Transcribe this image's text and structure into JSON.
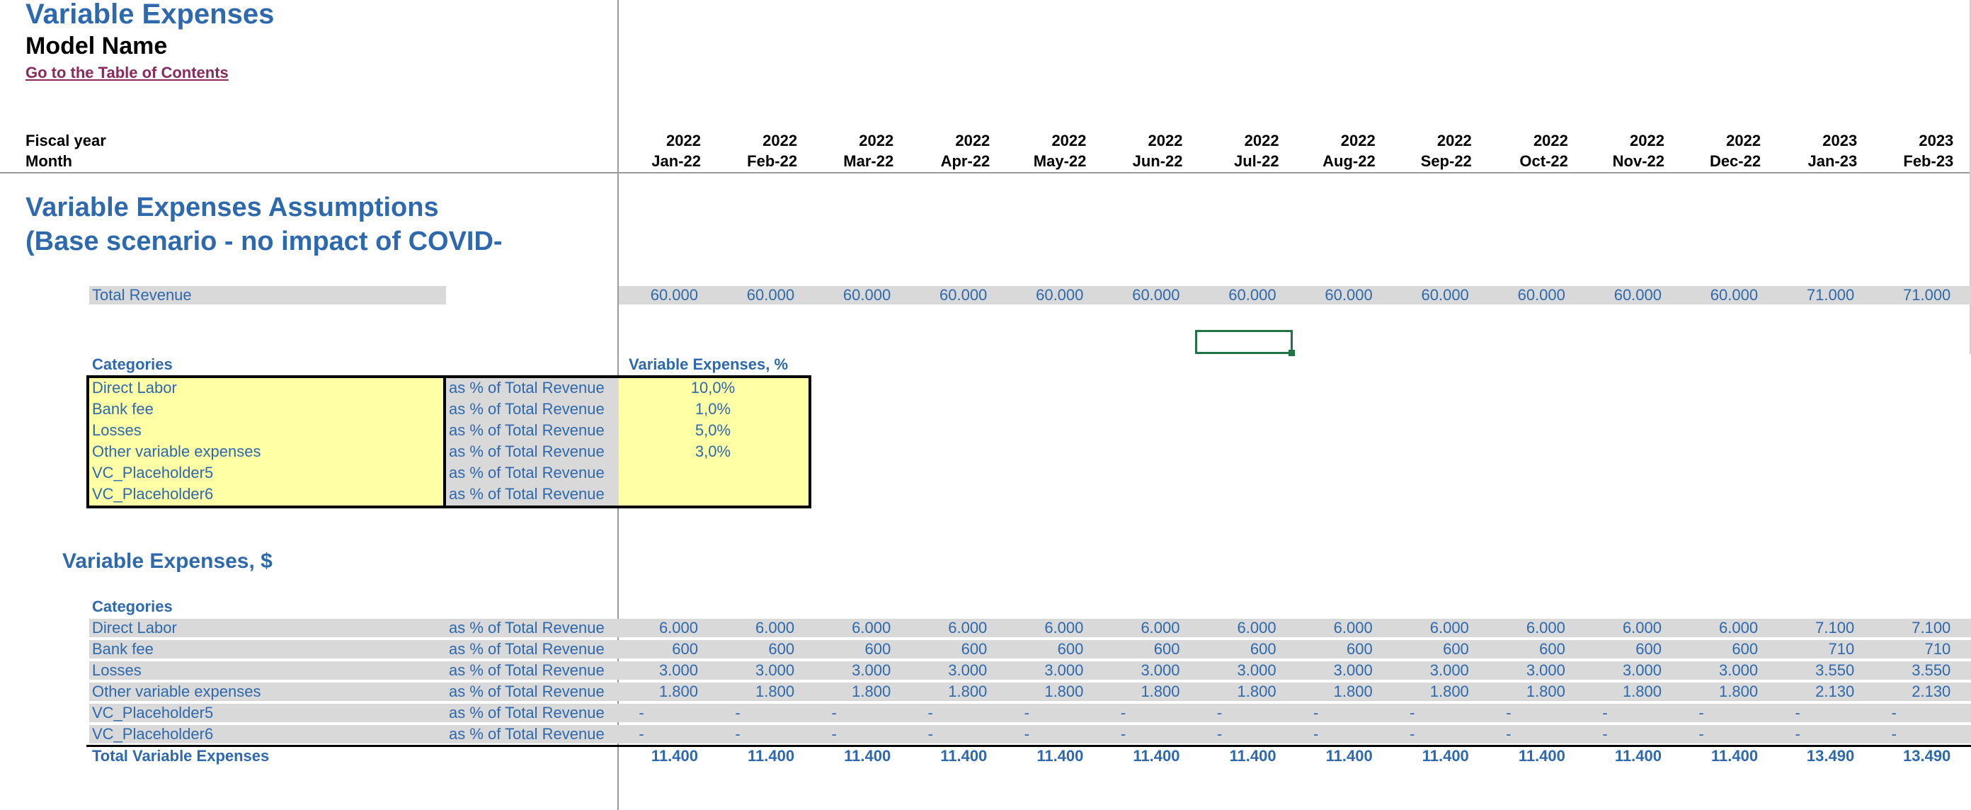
{
  "header": {
    "title": "Variable Expenses",
    "model_name": "Model Name",
    "toc_link": "Go to the Table of Contents",
    "fiscal_year_label": "Fiscal year",
    "month_label": "Month"
  },
  "columns": [
    {
      "year": "2022",
      "month": "Jan-22"
    },
    {
      "year": "2022",
      "month": "Feb-22"
    },
    {
      "year": "2022",
      "month": "Mar-22"
    },
    {
      "year": "2022",
      "month": "Apr-22"
    },
    {
      "year": "2022",
      "month": "May-22"
    },
    {
      "year": "2022",
      "month": "Jun-22"
    },
    {
      "year": "2022",
      "month": "Jul-22"
    },
    {
      "year": "2022",
      "month": "Aug-22"
    },
    {
      "year": "2022",
      "month": "Sep-22"
    },
    {
      "year": "2022",
      "month": "Oct-22"
    },
    {
      "year": "2022",
      "month": "Nov-22"
    },
    {
      "year": "2022",
      "month": "Dec-22"
    },
    {
      "year": "2023",
      "month": "Jan-23"
    },
    {
      "year": "2023",
      "month": "Feb-23"
    }
  ],
  "assumptions": {
    "title_line1": "Variable Expenses Assumptions",
    "title_line2": "(Base scenario - no impact of COVID-",
    "total_revenue_label": "Total Revenue",
    "total_revenue_values": [
      "60.000",
      "60.000",
      "60.000",
      "60.000",
      "60.000",
      "60.000",
      "60.000",
      "60.000",
      "60.000",
      "60.000",
      "60.000",
      "60.000",
      "71.000",
      "71.000"
    ],
    "categories_label": "Categories",
    "pct_header": "Variable Expenses, %",
    "rows": [
      {
        "name": "Direct Labor",
        "unit": "as % of Total Revenue",
        "pct": "10,0%"
      },
      {
        "name": "Bank fee",
        "unit": "as % of Total Revenue",
        "pct": "1,0%"
      },
      {
        "name": "Losses",
        "unit": "as % of Total Revenue",
        "pct": "5,0%"
      },
      {
        "name": "Other variable expenses",
        "unit": "as % of Total Revenue",
        "pct": "3,0%"
      },
      {
        "name": "VC_Placeholder5",
        "unit": "as % of Total Revenue",
        "pct": ""
      },
      {
        "name": "VC_Placeholder6",
        "unit": "as % of Total Revenue",
        "pct": ""
      }
    ]
  },
  "expenses": {
    "title": "Variable Expenses, $",
    "categories_label": "Categories",
    "rows": [
      {
        "name": "Direct Labor",
        "unit": "as % of Total Revenue",
        "values": [
          "6.000",
          "6.000",
          "6.000",
          "6.000",
          "6.000",
          "6.000",
          "6.000",
          "6.000",
          "6.000",
          "6.000",
          "6.000",
          "6.000",
          "7.100",
          "7.100"
        ]
      },
      {
        "name": "Bank fee",
        "unit": "as % of Total Revenue",
        "values": [
          "600",
          "600",
          "600",
          "600",
          "600",
          "600",
          "600",
          "600",
          "600",
          "600",
          "600",
          "600",
          "710",
          "710"
        ]
      },
      {
        "name": "Losses",
        "unit": "as % of Total Revenue",
        "values": [
          "3.000",
          "3.000",
          "3.000",
          "3.000",
          "3.000",
          "3.000",
          "3.000",
          "3.000",
          "3.000",
          "3.000",
          "3.000",
          "3.000",
          "3.550",
          "3.550"
        ]
      },
      {
        "name": "Other variable expenses",
        "unit": "as % of Total Revenue",
        "values": [
          "1.800",
          "1.800",
          "1.800",
          "1.800",
          "1.800",
          "1.800",
          "1.800",
          "1.800",
          "1.800",
          "1.800",
          "1.800",
          "1.800",
          "2.130",
          "2.130"
        ]
      },
      {
        "name": "VC_Placeholder5",
        "unit": "as % of Total Revenue",
        "values": [
          "-",
          "-",
          "-",
          "-",
          "-",
          "-",
          "-",
          "-",
          "-",
          "-",
          "-",
          "-",
          "-",
          "-"
        ]
      },
      {
        "name": "VC_Placeholder6",
        "unit": "as % of Total Revenue",
        "values": [
          "-",
          "-",
          "-",
          "-",
          "-",
          "-",
          "-",
          "-",
          "-",
          "-",
          "-",
          "-",
          "-",
          "-"
        ]
      }
    ],
    "total_label": "Total Variable Expenses",
    "total_values": [
      "11.400",
      "11.400",
      "11.400",
      "11.400",
      "11.400",
      "11.400",
      "11.400",
      "11.400",
      "11.400",
      "11.400",
      "11.400",
      "11.400",
      "13.490",
      "13.490"
    ]
  },
  "colors": {
    "accent_blue": "#2e69ad",
    "input_yellow": "#ffffa6",
    "band_gray": "#d9d9d9",
    "link": "#8a2a5a",
    "selection": "#217346"
  }
}
